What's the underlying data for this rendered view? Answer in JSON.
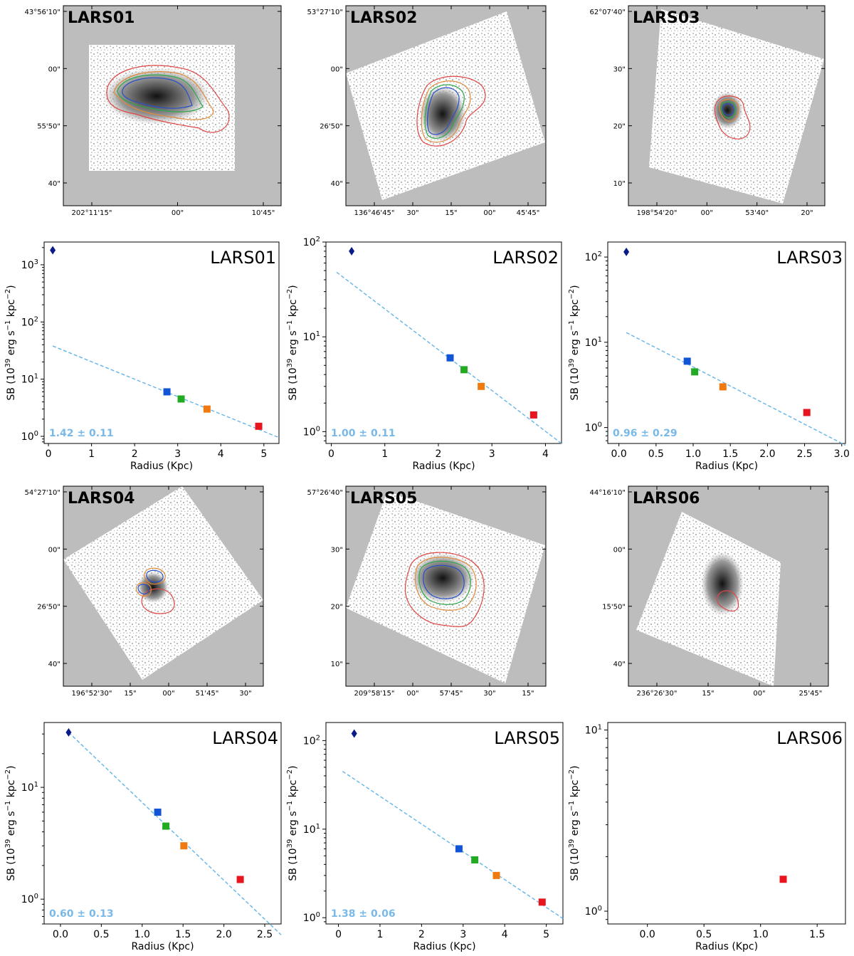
{
  "figure": {
    "description_panels": "Six LARS galaxy image cutouts with contours and six surface-brightness radial profile plots"
  },
  "image_panels": [
    {
      "id": "LARS01",
      "title": "LARS01",
      "y_ticks": [
        "43°56'10\"",
        "00\"",
        "55'50\"",
        "40\""
      ],
      "x_ticks": [
        "202°11'15\"",
        "00\"",
        "10'45\""
      ]
    },
    {
      "id": "LARS02",
      "title": "LARS02",
      "y_ticks": [
        "53°27'10\"",
        "00\"",
        "26'50\"",
        "40\""
      ],
      "x_ticks": [
        "136°46'45\"",
        "30\"",
        "15\"",
        "00\"",
        "45'45\""
      ]
    },
    {
      "id": "LARS03",
      "title": "LARS03",
      "y_ticks": [
        "62°07'40\"",
        "30\"",
        "20\"",
        "10\""
      ],
      "x_ticks": [
        "198°54'20\"",
        "00\"",
        "53'40\"",
        "20\""
      ]
    },
    {
      "id": "LARS04",
      "title": "LARS04",
      "y_ticks": [
        "54°27'10\"",
        "00\"",
        "26'50\"",
        "40\""
      ],
      "x_ticks": [
        "196°52'30\"",
        "15\"",
        "00\"",
        "51'45\"",
        "30\""
      ]
    },
    {
      "id": "LARS05",
      "title": "LARS05",
      "y_ticks": [
        "57°26'40\"",
        "30\"",
        "20\"",
        "10\""
      ],
      "x_ticks": [
        "209°58'15\"",
        "00\"",
        "57'45\"",
        "30\"",
        "15\""
      ]
    },
    {
      "id": "LARS06",
      "title": "LARS06",
      "y_ticks": [
        "44°16'10\"",
        "00\"",
        "15'50\"",
        "40\""
      ],
      "x_ticks": [
        "236°26'30\"",
        "15\"",
        "00\"",
        "25'45\""
      ]
    }
  ],
  "chart_data": [
    {
      "type": "scatter",
      "title": "LARS01",
      "xlabel": "Radius (Kpc)",
      "ylabel": "SB (10^39 erg s^-1 kpc^-2)",
      "yscale": "log",
      "xlim": [
        -0.1,
        5.35
      ],
      "ylim": [
        0.75,
        2500
      ],
      "xticks": [
        0,
        1,
        2,
        3,
        4,
        5
      ],
      "xtick_labels": [
        "0",
        "1",
        "2",
        "3",
        "4",
        "5"
      ],
      "yticks": [
        1,
        10,
        100,
        1000
      ],
      "ytick_labels": [
        "10^0",
        "10^1",
        "10^2",
        "10^3"
      ],
      "diamond": {
        "x": 0.1,
        "y": 1800
      },
      "points": [
        {
          "x": 2.75,
          "y": 6.0,
          "color": "#1254d6"
        },
        {
          "x": 3.08,
          "y": 4.5,
          "color": "#22aa22"
        },
        {
          "x": 3.68,
          "y": 3.0,
          "color": "#f07a10"
        },
        {
          "x": 4.88,
          "y": 1.5,
          "color": "#e8141e"
        }
      ],
      "fit": {
        "x0": 0.1,
        "y0": 38,
        "x1": 5.35,
        "y1": 0.95
      },
      "fit_label": "1.42 ± 0.11"
    },
    {
      "type": "scatter",
      "title": "LARS02",
      "xlabel": "Radius (Kpc)",
      "ylabel": "SB (10^39 erg s^-1 kpc^-2)",
      "yscale": "log",
      "xlim": [
        -0.1,
        4.3
      ],
      "ylim": [
        0.75,
        100
      ],
      "xticks": [
        0,
        1,
        2,
        3,
        4
      ],
      "xtick_labels": [
        "0",
        "1",
        "2",
        "3",
        "4"
      ],
      "yticks": [
        1,
        10,
        100
      ],
      "ytick_labels": [
        "10^0",
        "10^1",
        "10^2"
      ],
      "diamond": {
        "x": 0.38,
        "y": 80
      },
      "points": [
        {
          "x": 2.22,
          "y": 6.0,
          "color": "#1254d6"
        },
        {
          "x": 2.48,
          "y": 4.5,
          "color": "#22aa22"
        },
        {
          "x": 2.8,
          "y": 3.0,
          "color": "#f07a10"
        },
        {
          "x": 3.78,
          "y": 1.5,
          "color": "#e8141e"
        }
      ],
      "fit": {
        "x0": 0.1,
        "y0": 48,
        "x1": 4.3,
        "y1": 0.75
      },
      "fit_label": "1.00 ± 0.11"
    },
    {
      "type": "scatter",
      "title": "LARS03",
      "xlabel": "Radius (Kpc)",
      "ylabel": "SB (10^39 erg s^-1 kpc^-2)",
      "yscale": "log",
      "xlim": [
        -0.15,
        3.05
      ],
      "ylim": [
        0.65,
        150
      ],
      "xticks": [
        0,
        0.5,
        1,
        1.5,
        2,
        2.5,
        3
      ],
      "xtick_labels": [
        "0.0",
        "0.5",
        "1.0",
        "1.5",
        "2.0",
        "2.5",
        "3.0"
      ],
      "yticks": [
        1,
        10,
        100
      ],
      "ytick_labels": [
        "10^0",
        "10^1",
        "10^2"
      ],
      "diamond": {
        "x": 0.1,
        "y": 115
      },
      "points": [
        {
          "x": 0.92,
          "y": 6.0,
          "color": "#1254d6"
        },
        {
          "x": 1.02,
          "y": 4.5,
          "color": "#22aa22"
        },
        {
          "x": 1.4,
          "y": 3.0,
          "color": "#f07a10"
        },
        {
          "x": 2.53,
          "y": 1.5,
          "color": "#e8141e"
        }
      ],
      "fit": {
        "x0": 0.1,
        "y0": 13,
        "x1": 3.05,
        "y1": 0.62
      },
      "fit_label": "0.96 ± 0.29"
    },
    {
      "type": "scatter",
      "title": "LARS04",
      "xlabel": "Radius (Kpc)",
      "ylabel": "SB (10^39 erg s^-1 kpc^-2)",
      "yscale": "log",
      "xlim": [
        -0.2,
        2.7
      ],
      "ylim": [
        0.6,
        38
      ],
      "xticks": [
        0,
        0.5,
        1,
        1.5,
        2,
        2.5
      ],
      "xtick_labels": [
        "0.0",
        "0.5",
        "1.0",
        "1.5",
        "2.0",
        "2.5"
      ],
      "yticks": [
        1,
        10
      ],
      "ytick_labels": [
        "10^0",
        "10^1"
      ],
      "diamond": {
        "x": 0.1,
        "y": 31
      },
      "points": [
        {
          "x": 1.19,
          "y": 6.0,
          "color": "#1254d6"
        },
        {
          "x": 1.29,
          "y": 4.5,
          "color": "#22aa22"
        },
        {
          "x": 1.51,
          "y": 3.0,
          "color": "#f07a10"
        },
        {
          "x": 2.2,
          "y": 1.5,
          "color": "#e8141e"
        }
      ],
      "fit": {
        "x0": 0.1,
        "y0": 31,
        "x1": 2.7,
        "y1": 0.48
      },
      "fit_label": "0.60 ± 0.13"
    },
    {
      "type": "scatter",
      "title": "LARS05",
      "xlabel": "Radius (Kpc)",
      "ylabel": "SB (10^39 erg s^-1 kpc^-2)",
      "yscale": "log",
      "xlim": [
        -0.3,
        5.4
      ],
      "ylim": [
        0.85,
        160
      ],
      "xticks": [
        0,
        1,
        2,
        3,
        4,
        5
      ],
      "xtick_labels": [
        "0",
        "1",
        "2",
        "3",
        "4",
        "5"
      ],
      "yticks": [
        1,
        10,
        100
      ],
      "ytick_labels": [
        "10^0",
        "10^1",
        "10^2"
      ],
      "diamond": {
        "x": 0.38,
        "y": 120
      },
      "points": [
        {
          "x": 2.9,
          "y": 6.0,
          "color": "#1254d6"
        },
        {
          "x": 3.28,
          "y": 4.5,
          "color": "#22aa22"
        },
        {
          "x": 3.8,
          "y": 3.0,
          "color": "#f07a10"
        },
        {
          "x": 4.9,
          "y": 1.5,
          "color": "#e8141e"
        }
      ],
      "fit": {
        "x0": 0.1,
        "y0": 45,
        "x1": 5.4,
        "y1": 0.98
      },
      "fit_label": "1.38 ± 0.06"
    },
    {
      "type": "scatter",
      "title": "LARS06",
      "xlabel": "Radius (Kpc)",
      "ylabel": "SB (10^39 erg s^-1 kpc^-2)",
      "yscale": "log",
      "xlim": [
        -0.35,
        1.75
      ],
      "ylim": [
        0.85,
        11
      ],
      "xticks": [
        0,
        0.5,
        1,
        1.5
      ],
      "xtick_labels": [
        "0.0",
        "0.5",
        "1.0",
        "1.5"
      ],
      "yticks": [
        1,
        10
      ],
      "ytick_labels": [
        "10^0",
        "10^1"
      ],
      "diamond": null,
      "points": [
        {
          "x": 1.2,
          "y": 1.5,
          "color": "#e8141e"
        }
      ],
      "fit": null,
      "fit_label": ""
    }
  ],
  "labels": {
    "xlabel": "Radius (Kpc)",
    "ylabel": "SB (10^39 erg s^-1 kpc^-2)"
  }
}
